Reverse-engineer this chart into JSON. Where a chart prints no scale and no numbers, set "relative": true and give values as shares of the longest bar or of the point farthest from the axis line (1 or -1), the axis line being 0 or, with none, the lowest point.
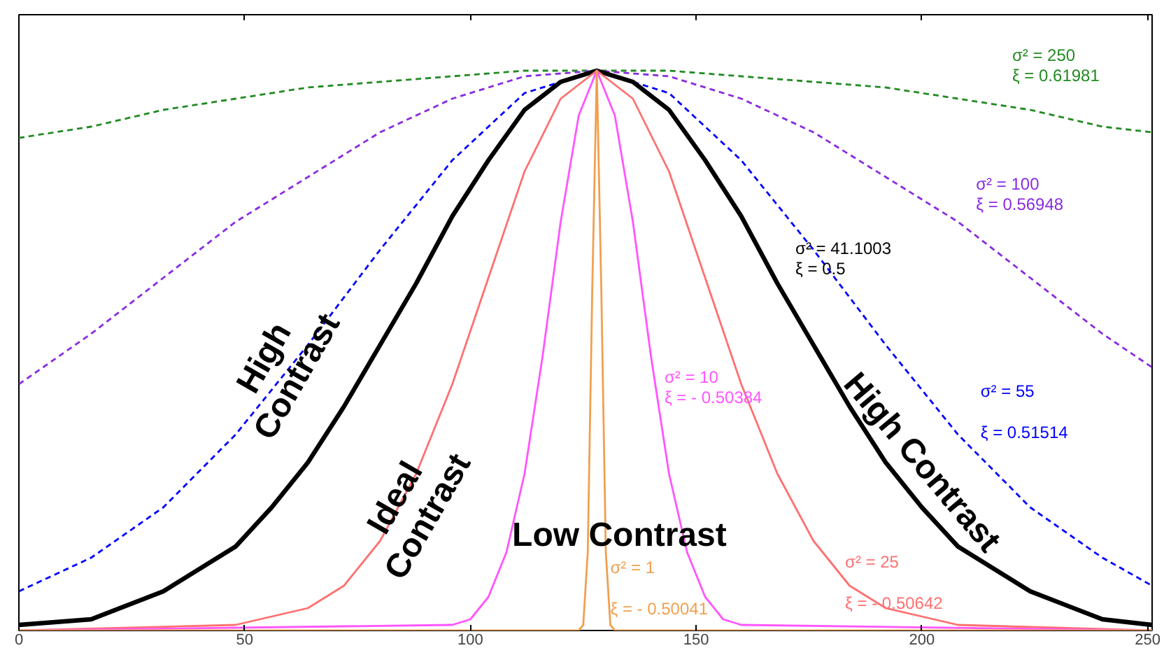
{
  "chart_data": {
    "type": "line",
    "relative": true,
    "xlim": [
      0,
      251
    ],
    "xticks": [
      0,
      50,
      100,
      150,
      200,
      250
    ],
    "tick_labels": "x",
    "grid": false,
    "legend": false,
    "marker": "none",
    "series": [
      {
        "name": "σ² = 250\nξ = 0.61981",
        "color": "#228b22",
        "line_style": "dashed",
        "x": [
          0,
          16,
          32,
          48,
          64,
          80,
          96,
          112,
          128,
          144,
          160,
          176,
          192,
          208,
          224,
          240,
          251
        ],
        "values": [
          0.88,
          0.9,
          0.93,
          0.95,
          0.97,
          0.98,
          0.99,
          1.0,
          1,
          1.0,
          0.99,
          0.98,
          0.97,
          0.95,
          0.93,
          0.9,
          0.89
        ]
      },
      {
        "name": "σ² = 100\nξ = 0.56948",
        "color": "#8a2be2",
        "line_style": "dashed",
        "x": [
          0,
          16,
          32,
          48,
          64,
          80,
          96,
          112,
          128,
          144,
          160,
          176,
          192,
          208,
          224,
          240,
          251
        ],
        "values": [
          0.44,
          0.53,
          0.63,
          0.73,
          0.81,
          0.89,
          0.95,
          0.99,
          1,
          0.99,
          0.95,
          0.89,
          0.81,
          0.73,
          0.63,
          0.53,
          0.47
        ]
      },
      {
        "name": "σ² = 55\n\nξ = 0.51514",
        "color": "#0000ff",
        "line_style": "dashed",
        "x": [
          0,
          16,
          32,
          48,
          64,
          80,
          96,
          112,
          128,
          144,
          160,
          176,
          192,
          208,
          224,
          240,
          251
        ],
        "values": [
          0.07,
          0.13,
          0.22,
          0.35,
          0.51,
          0.68,
          0.84,
          0.96,
          1,
          0.96,
          0.84,
          0.68,
          0.51,
          0.35,
          0.22,
          0.13,
          0.08
        ]
      },
      {
        "name": "σ² = 41.1003\nξ = 0.5",
        "color": "#000000",
        "line_style": "solid",
        "x": [
          0,
          16,
          32,
          48,
          56,
          64,
          72,
          80,
          88,
          96,
          104,
          112,
          120,
          128,
          136,
          144,
          152,
          160,
          168,
          176,
          184,
          192,
          200,
          208,
          224,
          240,
          251
        ],
        "values": [
          0.01,
          0.02,
          0.07,
          0.15,
          0.22,
          0.3,
          0.4,
          0.51,
          0.62,
          0.74,
          0.84,
          0.93,
          0.98,
          1,
          0.98,
          0.93,
          0.84,
          0.74,
          0.62,
          0.51,
          0.4,
          0.3,
          0.22,
          0.15,
          0.07,
          0.02,
          0.01
        ]
      },
      {
        "name": "σ² = 25\n\nξ = - 0.50642",
        "color": "#ff7070",
        "line_style": "solid",
        "x": [
          0,
          48,
          64,
          72,
          80,
          88,
          96,
          104,
          112,
          120,
          128,
          136,
          144,
          152,
          160,
          168,
          176,
          184,
          192,
          208,
          251
        ],
        "values": [
          0,
          0.01,
          0.04,
          0.08,
          0.16,
          0.28,
          0.44,
          0.63,
          0.82,
          0.95,
          1,
          0.95,
          0.82,
          0.63,
          0.44,
          0.28,
          0.16,
          0.08,
          0.04,
          0.01,
          0
        ]
      },
      {
        "name": "σ² = 10\nξ = - 0.50384",
        "color": "#ff55ff",
        "line_style": "solid",
        "x": [
          0,
          96,
          100,
          104,
          108,
          112,
          116,
          120,
          124,
          128,
          132,
          136,
          140,
          144,
          148,
          152,
          156,
          160,
          251
        ],
        "values": [
          0,
          0.01,
          0.02,
          0.06,
          0.14,
          0.28,
          0.49,
          0.73,
          0.92,
          1,
          0.92,
          0.73,
          0.49,
          0.28,
          0.14,
          0.06,
          0.02,
          0.01,
          0
        ]
      },
      {
        "name": "σ² = 1\n\nξ = - 0.50041",
        "color": "#f0a050",
        "line_style": "solid",
        "x": [
          0,
          124,
          125,
          126,
          127,
          128,
          129,
          130,
          131,
          132,
          251
        ],
        "values": [
          0,
          0,
          0.01,
          0.14,
          0.61,
          1,
          0.61,
          0.14,
          0.01,
          0,
          0
        ]
      }
    ],
    "annotations": [
      "High\nContrast",
      "Ideal\nContrast",
      "Low Contrast",
      "High Contrast"
    ]
  }
}
